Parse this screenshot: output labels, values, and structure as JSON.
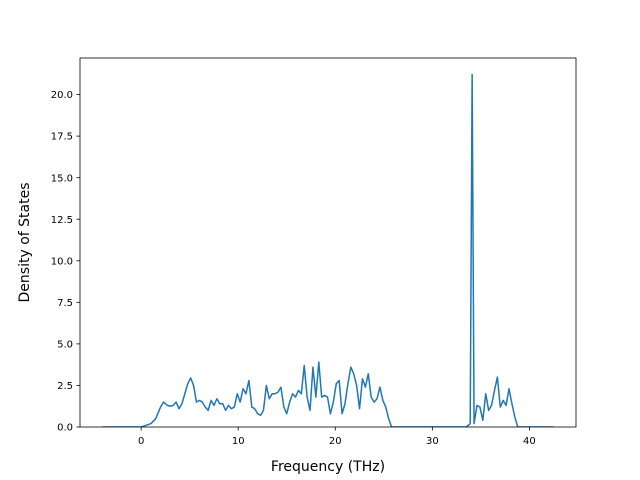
{
  "chart_data": {
    "type": "line",
    "title": "",
    "xlabel": "Frequency (THz)",
    "ylabel": "Density of States",
    "xlim": [
      -6.3,
      44.8
    ],
    "ylim": [
      0,
      22.2
    ],
    "xticks": [
      0,
      10,
      20,
      30,
      40
    ],
    "yticks": [
      0.0,
      2.5,
      5.0,
      7.5,
      10.0,
      12.5,
      15.0,
      17.5,
      20.0
    ],
    "ytick_labels": [
      "0.0",
      "2.5",
      "5.0",
      "7.5",
      "10.0",
      "12.5",
      "15.0",
      "17.5",
      "20.0"
    ],
    "grid": false,
    "series": [
      {
        "color": "#1f77b4",
        "x": [
          -4.0,
          -2.0,
          0.0,
          0.5,
          1.0,
          1.5,
          2.0,
          2.3,
          2.7,
          3.0,
          3.3,
          3.6,
          3.9,
          4.2,
          4.5,
          4.8,
          5.1,
          5.4,
          5.7,
          6.0,
          6.3,
          6.6,
          6.9,
          7.2,
          7.5,
          7.8,
          8.1,
          8.4,
          8.7,
          9.0,
          9.3,
          9.6,
          9.9,
          10.2,
          10.5,
          10.8,
          11.1,
          11.4,
          11.7,
          12.0,
          12.3,
          12.6,
          12.9,
          13.2,
          13.5,
          13.8,
          14.1,
          14.4,
          14.7,
          15.0,
          15.3,
          15.6,
          15.9,
          16.2,
          16.5,
          16.8,
          17.1,
          17.4,
          17.7,
          18.0,
          18.3,
          18.6,
          18.9,
          19.2,
          19.5,
          19.8,
          20.1,
          20.4,
          20.7,
          21.0,
          21.3,
          21.6,
          21.9,
          22.2,
          22.5,
          22.8,
          23.1,
          23.4,
          23.7,
          24.0,
          24.3,
          24.6,
          24.9,
          25.2,
          25.5,
          25.8,
          26.5,
          30.0,
          33.5,
          33.9,
          34.1,
          34.3,
          34.6,
          34.9,
          35.2,
          35.5,
          35.8,
          36.1,
          36.4,
          36.7,
          37.0,
          37.3,
          37.6,
          37.9,
          38.2,
          38.5,
          38.8,
          39.2,
          40.0,
          42.5
        ],
        "y": [
          0.0,
          0.0,
          0.0,
          0.1,
          0.2,
          0.5,
          1.2,
          1.5,
          1.3,
          1.25,
          1.3,
          1.5,
          1.1,
          1.4,
          2.0,
          2.6,
          2.95,
          2.5,
          1.5,
          1.6,
          1.5,
          1.2,
          1.0,
          1.6,
          1.3,
          1.7,
          1.4,
          1.4,
          1.0,
          1.3,
          1.1,
          1.2,
          2.0,
          1.5,
          2.3,
          2.0,
          2.8,
          1.2,
          1.1,
          0.8,
          0.7,
          1.0,
          2.5,
          1.7,
          2.0,
          2.0,
          2.1,
          2.4,
          1.2,
          0.8,
          1.5,
          2.0,
          1.8,
          2.2,
          2.0,
          3.7,
          1.8,
          1.0,
          3.6,
          1.8,
          3.9,
          1.8,
          1.9,
          1.8,
          0.8,
          1.5,
          2.6,
          2.8,
          0.8,
          1.4,
          2.6,
          3.6,
          3.2,
          2.5,
          1.1,
          2.9,
          2.4,
          3.2,
          1.8,
          1.5,
          1.7,
          2.4,
          1.6,
          1.2,
          0.5,
          0.0,
          0.0,
          0.0,
          0.0,
          0.2,
          21.2,
          0.2,
          1.3,
          1.2,
          0.4,
          2.0,
          1.0,
          1.3,
          2.2,
          3.0,
          1.2,
          1.6,
          1.3,
          2.3,
          1.4,
          0.6,
          0.0,
          0.0,
          0.0,
          0.0
        ]
      }
    ]
  }
}
